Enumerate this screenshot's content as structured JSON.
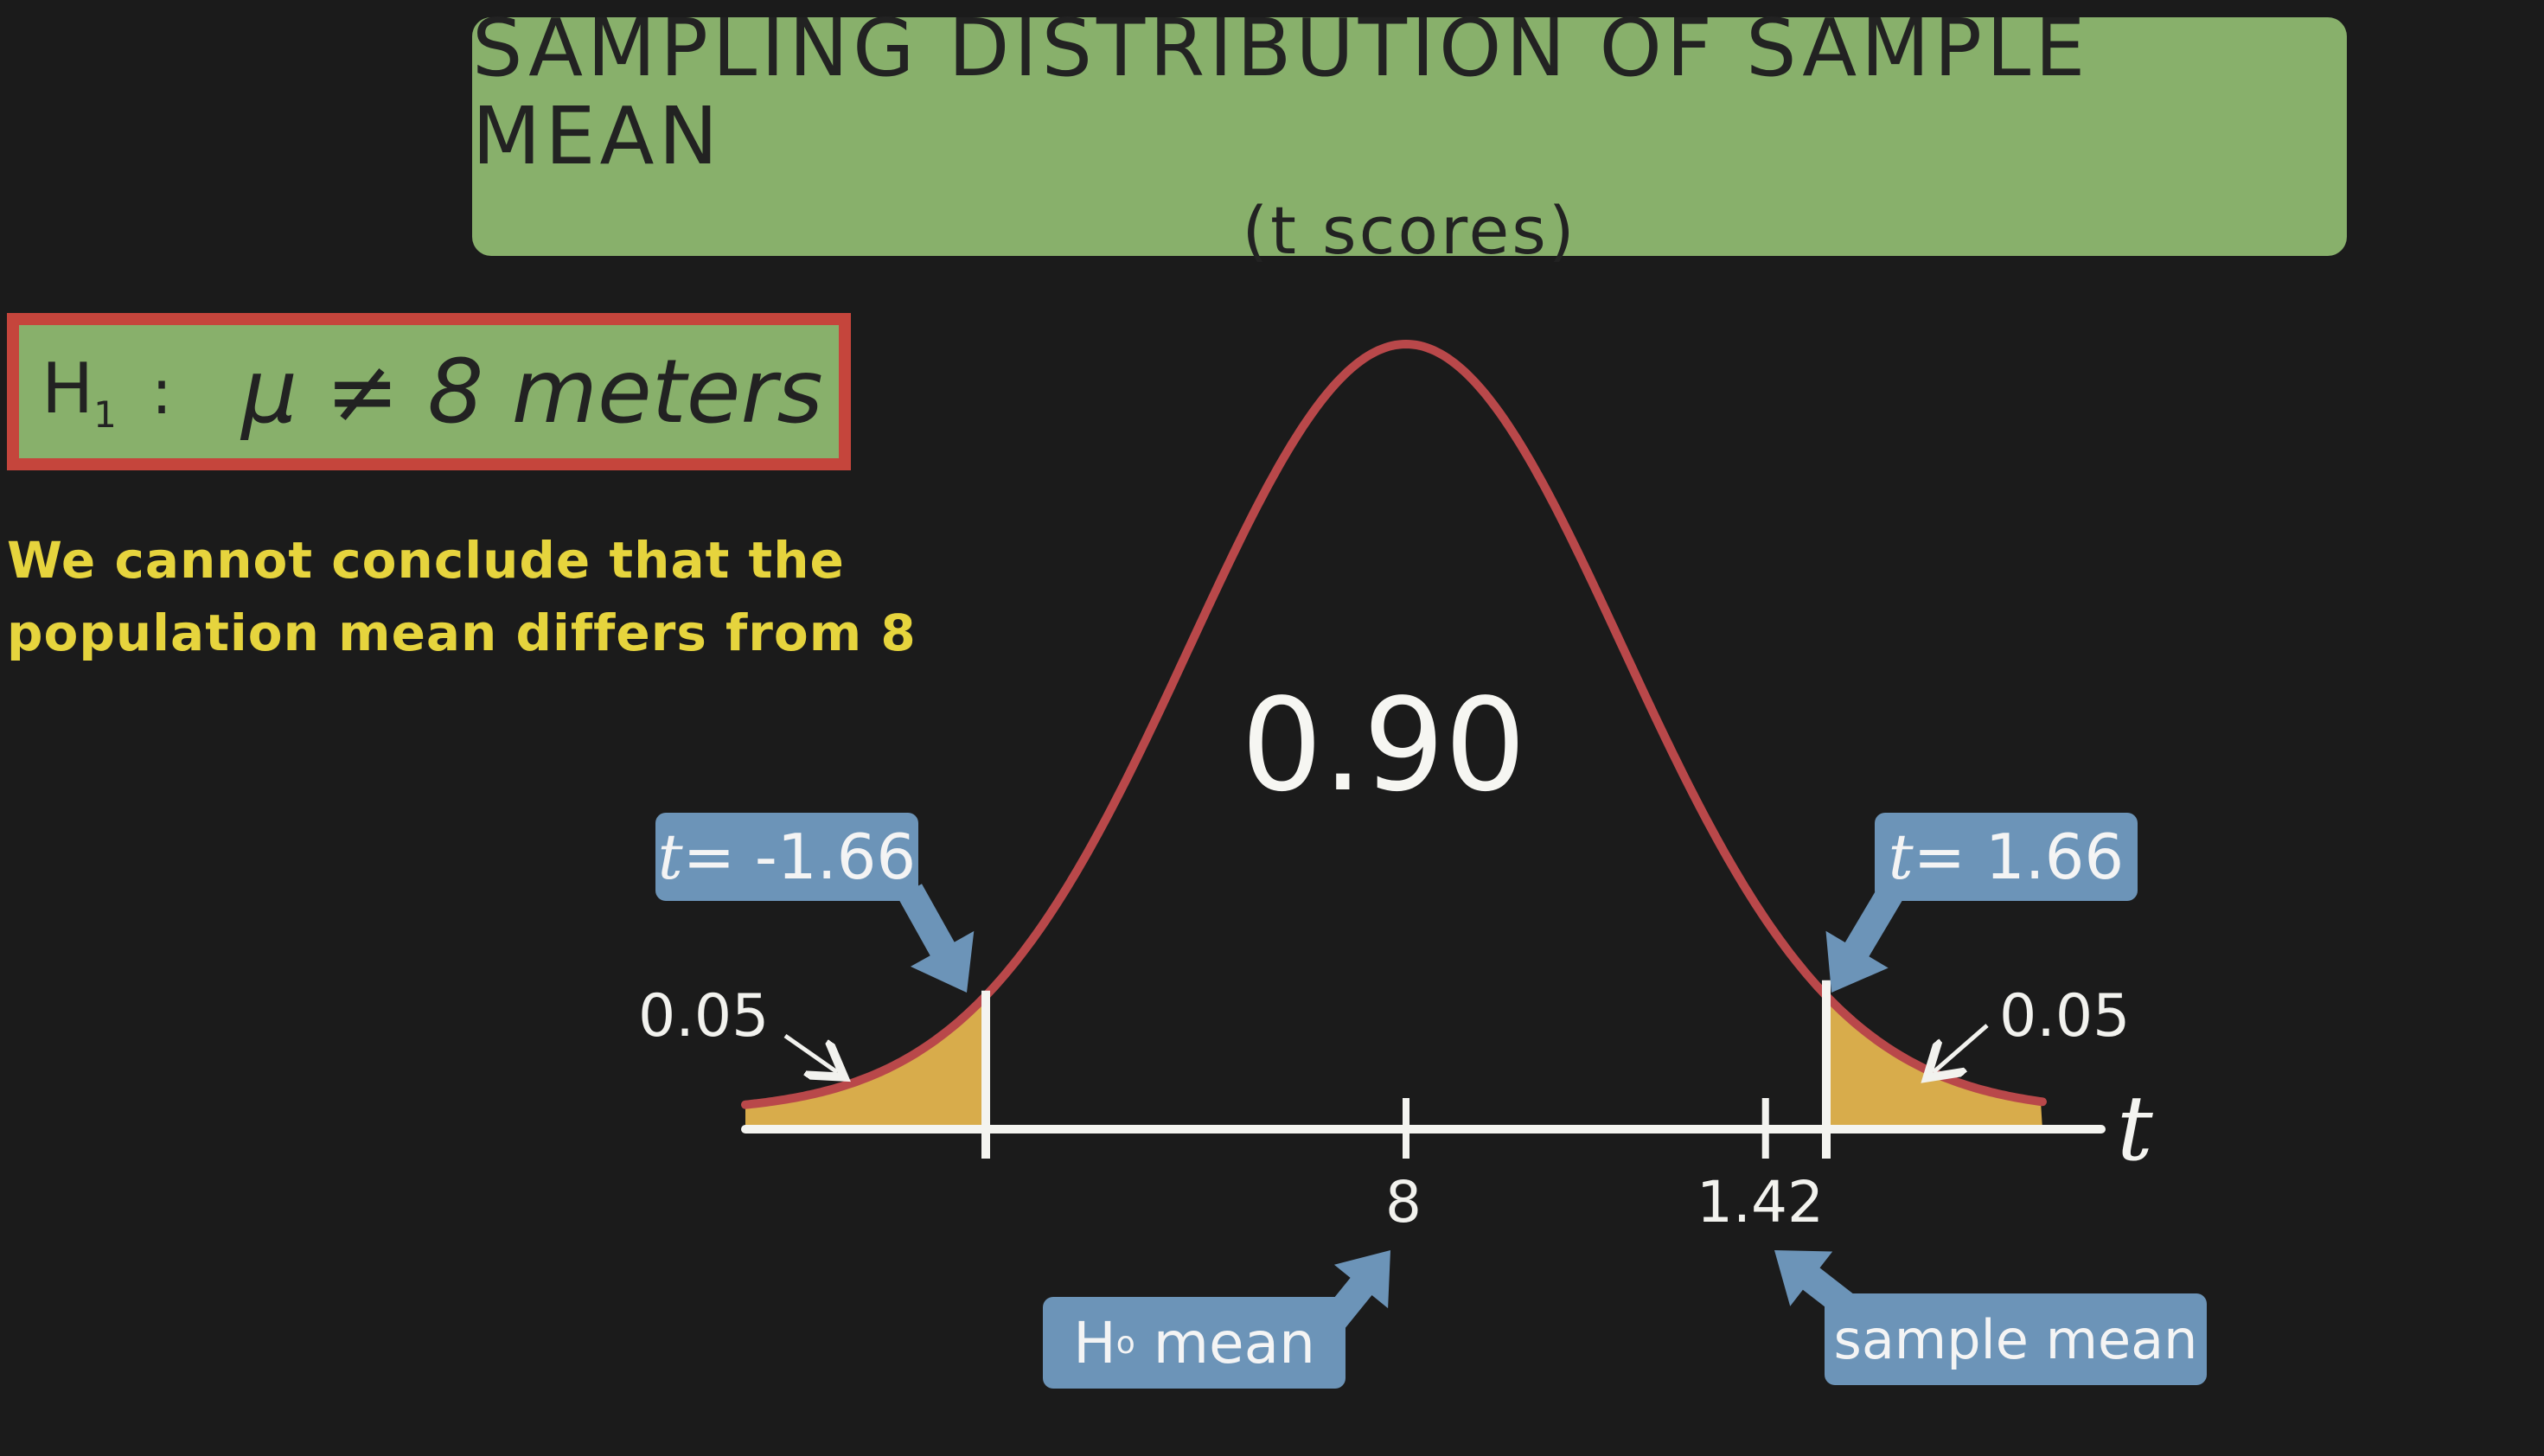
{
  "title": {
    "main": "SAMPLING DISTRIBUTION OF SAMPLE MEAN",
    "sub": "(t scores)"
  },
  "hypothesis": {
    "label": "H",
    "label_sub": "1",
    "colon": ":",
    "expression": "μ ≠ 8 meters"
  },
  "conclusion": {
    "line1": "We cannot conclude that the",
    "line2": "population mean differs from 8"
  },
  "chart_data": {
    "type": "area",
    "distribution": "t",
    "xlabel": "t",
    "center_area": "0.90",
    "left_tail_area": "0.05",
    "right_tail_area": "0.05",
    "critical_values": [
      -1.66,
      1.66
    ],
    "critical_labels": [
      "t = -1.66",
      "t = 1.66"
    ],
    "tick_labels": [
      "8",
      "1.42"
    ],
    "sample_t": 1.42,
    "annotations": [
      "H0 mean",
      "sample mean"
    ]
  },
  "callouts": {
    "t_left": {
      "var": "t",
      "text": " = -1.66"
    },
    "t_right": {
      "var": "t",
      "text": " = 1.66"
    },
    "h0_label": "H",
    "h0_sub": "o",
    "h0_rest": " mean",
    "sample_mean": "sample mean"
  },
  "colors": {
    "background": "#1b1b1b",
    "header_green": "#88b06b",
    "curve_red": "#b9484a",
    "tail_fill": "#d8ac4b",
    "callout_blue": "#6c94b8",
    "conclusion_yellow": "#e6d43d",
    "hypothesis_border": "#c5453c"
  }
}
